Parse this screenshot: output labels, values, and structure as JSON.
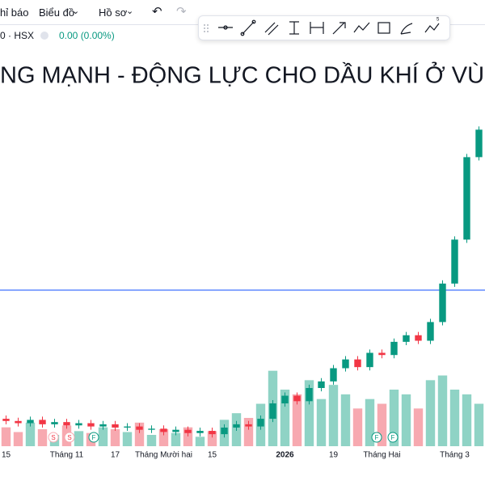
{
  "toolbar": {
    "indicators": "hỉ báo",
    "chart_menu": "Biểu đồ",
    "profile_menu": "Hồ sơ"
  },
  "symbol": {
    "exchange": "0 · HSX",
    "change": "0.00 (0.00%)"
  },
  "markers": [
    "S",
    "S",
    "F",
    "F",
    "F"
  ],
  "chart_data": {
    "type": "candlestick",
    "title": "NG MẠNH - ĐỘNG LỰC CHO DẦU KHÍ Ở VÙNG",
    "categories": [
      "15",
      null,
      null,
      null,
      null,
      "Tháng 11",
      null,
      null,
      null,
      "17",
      null,
      null,
      null,
      "Tháng Mười hai",
      null,
      null,
      null,
      "15",
      null,
      null,
      null,
      null,
      null,
      "2026",
      null,
      null,
      null,
      "19",
      null,
      null,
      null,
      "Tháng Hai",
      null,
      null,
      null,
      null,
      null,
      "Tháng 3",
      null,
      null
    ],
    "open": [
      12.2,
      12.0,
      11.8,
      12.1,
      11.7,
      11.9,
      11.6,
      11.8,
      11.5,
      11.7,
      11.4,
      11.5,
      11.2,
      11.3,
      11.0,
      11.2,
      10.9,
      11.1,
      10.8,
      11.4,
      11.7,
      11.5,
      12.2,
      13.6,
      14.3,
      13.8,
      15.0,
      15.6,
      16.8,
      17.6,
      16.9,
      18.2,
      18.0,
      19.2,
      19.8,
      19.3,
      21.0,
      24.5,
      28.5,
      36.0
    ],
    "high": [
      12.5,
      12.3,
      12.4,
      12.4,
      12.2,
      12.2,
      12.1,
      12.1,
      12.0,
      12.0,
      11.8,
      11.8,
      11.6,
      11.6,
      11.5,
      11.5,
      11.4,
      11.4,
      11.7,
      12.0,
      12.0,
      12.5,
      13.9,
      14.6,
      14.6,
      15.3,
      15.9,
      17.1,
      17.9,
      17.9,
      18.5,
      18.5,
      19.5,
      20.1,
      20.1,
      21.3,
      24.8,
      28.8,
      36.3,
      38.8
    ],
    "low": [
      11.7,
      11.5,
      11.5,
      11.4,
      11.4,
      11.3,
      11.3,
      11.2,
      11.2,
      11.1,
      11.1,
      10.9,
      10.9,
      10.7,
      10.7,
      10.6,
      10.6,
      10.5,
      10.5,
      11.1,
      11.2,
      11.2,
      11.9,
      13.3,
      13.5,
      13.5,
      14.7,
      15.3,
      16.5,
      16.6,
      16.6,
      17.7,
      17.7,
      18.9,
      19.0,
      19.0,
      20.7,
      24.2,
      28.2,
      35.7
    ],
    "close": [
      12.0,
      11.8,
      12.1,
      11.7,
      11.9,
      11.6,
      11.8,
      11.5,
      11.7,
      11.4,
      11.5,
      11.2,
      11.3,
      11.0,
      11.2,
      10.9,
      11.1,
      10.8,
      11.4,
      11.7,
      11.5,
      12.2,
      13.6,
      14.3,
      13.8,
      15.0,
      15.6,
      16.8,
      17.6,
      16.9,
      18.2,
      18.0,
      19.2,
      19.8,
      19.3,
      21.0,
      24.5,
      28.5,
      36.0,
      38.5
    ],
    "volume": [
      20,
      15,
      25,
      18,
      12,
      22,
      16,
      14,
      20,
      18,
      15,
      25,
      12,
      18,
      14,
      20,
      10,
      16,
      28,
      35,
      30,
      45,
      80,
      60,
      55,
      70,
      50,
      65,
      55,
      40,
      50,
      45,
      60,
      55,
      40,
      70,
      75,
      60,
      55,
      45
    ],
    "ylim": [
      10,
      40
    ],
    "vlim": [
      0,
      120
    ],
    "hline": 23.9,
    "up_color": "#089981",
    "down_color": "#f23645",
    "up_volume_color": "#8fd3c5",
    "down_volume_color": "#f7a9b0",
    "hline_color": "#2962ff"
  }
}
